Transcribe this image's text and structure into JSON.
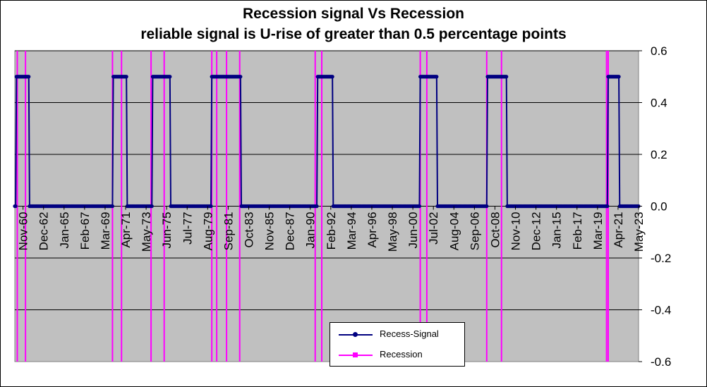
{
  "chart_data": {
    "type": "line",
    "title": "Recession signal Vs Recession",
    "subtitle": "reliable signal is U-rise of greater than 0.5 percentage points",
    "y_axis": {
      "ticks": [
        "0.6",
        "0.4",
        "0.2",
        "0.0",
        "-0.2",
        "-0.4",
        "-0.6"
      ],
      "tick_values": [
        0.6,
        0.4,
        0.2,
        0.0,
        -0.2,
        -0.4,
        -0.6
      ],
      "ylim": [
        -0.6,
        0.6
      ],
      "position": "right"
    },
    "x_axis": {
      "start": "1960-01",
      "end": "2023-05",
      "tick_labels": [
        "Nov-60",
        "Dec-62",
        "Jan-65",
        "Feb-67",
        "Mar-69",
        "Apr-71",
        "May-73",
        "Jun-75",
        "Jul-77",
        "Aug-79",
        "Sep-81",
        "Oct-83",
        "Nov-85",
        "Dec-87",
        "Jan-90",
        "Feb-92",
        "Mar-94",
        "Apr-96",
        "May-98",
        "Jun-00",
        "Jul-02",
        "Aug-04",
        "Sep-06",
        "Oct-08",
        "Nov-10",
        "Dec-12",
        "Jan-15",
        "Feb-17",
        "Mar-19",
        "Apr-21",
        "May-23"
      ],
      "tick_dates": [
        "1960-11",
        "1962-12",
        "1965-01",
        "1967-02",
        "1969-03",
        "1971-04",
        "1973-05",
        "1975-06",
        "1977-07",
        "1979-08",
        "1981-09",
        "1983-10",
        "1985-11",
        "1987-12",
        "1990-01",
        "1992-02",
        "1994-03",
        "1996-04",
        "1998-05",
        "2000-06",
        "2002-07",
        "2004-08",
        "2006-09",
        "2008-10",
        "2010-11",
        "2012-12",
        "2015-01",
        "2017-02",
        "2019-03",
        "2021-04",
        "2023-05"
      ]
    },
    "grid": "horizontal",
    "legend_placement": "bottom-center",
    "series": [
      {
        "name": "Recess-Signal",
        "color": "#000080",
        "marker": "circle",
        "signal_value": 0.5,
        "baseline_value": 0.0,
        "on_intervals": [
          [
            "1960-03",
            "1961-06"
          ],
          [
            "1970-01",
            "1971-05"
          ],
          [
            "1974-01",
            "1975-10"
          ],
          [
            "1980-01",
            "1982-12"
          ],
          [
            "1990-10",
            "1992-04"
          ],
          [
            "2001-03",
            "2002-11"
          ],
          [
            "2008-01",
            "2009-12"
          ],
          [
            "2020-04",
            "2021-05"
          ]
        ]
      },
      {
        "name": "Recession",
        "color": "#ff00ff",
        "marker": "square",
        "recession_line_dates": [
          "1960-04",
          "1961-02",
          "1969-12",
          "1970-11",
          "1973-11",
          "1975-03",
          "1980-01",
          "1980-07",
          "1981-07",
          "1982-11",
          "1990-07",
          "1991-03",
          "2001-03",
          "2001-11",
          "2007-12",
          "2009-06",
          "2020-02",
          "2020-04"
        ]
      }
    ]
  }
}
